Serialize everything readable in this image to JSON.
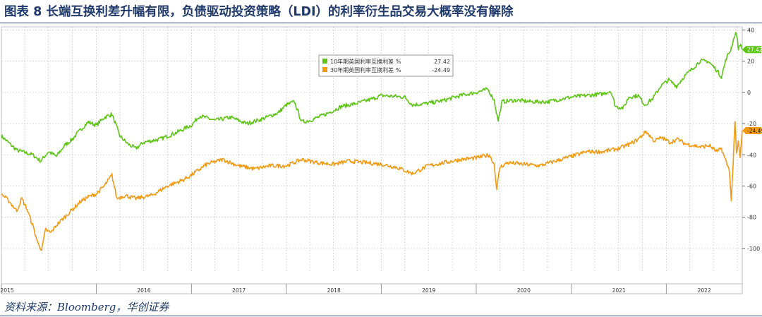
{
  "title": "图表 8  长端互换利差升幅有限，负债驱动投资策略（LDI）的利率衍生品交易大概率没有解除",
  "source": "资料来源：Bloomberg，华创证券",
  "chart_data": {
    "type": "line",
    "ylim": [
      -110,
      42
    ],
    "y_ticks": [
      40,
      20,
      0,
      -20,
      -40,
      -60,
      -80,
      -100
    ],
    "x_range": [
      "2015-01-01",
      "2022-10-20"
    ],
    "x_ticks": [
      "2015",
      "2016",
      "2017",
      "2018",
      "2019",
      "2020",
      "2021",
      "2022"
    ],
    "grid": true,
    "legend_position": "top-center",
    "series": [
      {
        "name": "10年期英国利率互换利差 %",
        "last_value": "27.42",
        "color": "#5ec416",
        "points": [
          [
            "2015-01-01",
            -28
          ],
          [
            "2015-03-01",
            -37
          ],
          [
            "2015-05-01",
            -40
          ],
          [
            "2015-06-01",
            -44
          ],
          [
            "2015-07-01",
            -38
          ],
          [
            "2015-08-01",
            -41
          ],
          [
            "2015-09-01",
            -34
          ],
          [
            "2015-10-01",
            -30
          ],
          [
            "2015-11-01",
            -24
          ],
          [
            "2015-12-01",
            -19
          ],
          [
            "2016-01-01",
            -21
          ],
          [
            "2016-02-01",
            -16
          ],
          [
            "2016-03-01",
            -14
          ],
          [
            "2016-04-01",
            -28
          ],
          [
            "2016-05-01",
            -33
          ],
          [
            "2016-06-01",
            -36
          ],
          [
            "2016-07-01",
            -32
          ],
          [
            "2016-09-01",
            -30
          ],
          [
            "2016-11-01",
            -26
          ],
          [
            "2017-01-01",
            -21
          ],
          [
            "2017-02-01",
            -15
          ],
          [
            "2017-04-01",
            -18
          ],
          [
            "2017-06-01",
            -16
          ],
          [
            "2017-08-01",
            -20
          ],
          [
            "2017-10-01",
            -17
          ],
          [
            "2017-12-01",
            -13
          ],
          [
            "2018-01-01",
            -8
          ],
          [
            "2018-02-01",
            -6
          ],
          [
            "2018-03-01",
            -19
          ],
          [
            "2018-04-01",
            -18
          ],
          [
            "2018-06-01",
            -14
          ],
          [
            "2018-08-01",
            -9
          ],
          [
            "2018-10-01",
            -7
          ],
          [
            "2018-12-01",
            -4
          ],
          [
            "2019-01-01",
            -2
          ],
          [
            "2019-04-01",
            -3
          ],
          [
            "2019-05-01",
            -8
          ],
          [
            "2019-07-01",
            -7
          ],
          [
            "2019-09-01",
            -5
          ],
          [
            "2019-11-01",
            -2
          ],
          [
            "2020-01-01",
            0
          ],
          [
            "2020-02-15",
            2
          ],
          [
            "2020-03-10",
            -5
          ],
          [
            "2020-03-25",
            -18
          ],
          [
            "2020-04-10",
            -6
          ],
          [
            "2020-06-01",
            -5
          ],
          [
            "2020-08-01",
            -6
          ],
          [
            "2020-10-01",
            -6
          ],
          [
            "2020-12-01",
            -4
          ],
          [
            "2021-01-01",
            -3
          ],
          [
            "2021-03-01",
            -2
          ],
          [
            "2021-05-01",
            -1
          ],
          [
            "2021-06-01",
            1
          ],
          [
            "2021-06-20",
            -9
          ],
          [
            "2021-07-20",
            -10
          ],
          [
            "2021-08-10",
            -3
          ],
          [
            "2021-09-15",
            -2
          ],
          [
            "2021-10-10",
            -8
          ],
          [
            "2021-11-10",
            -4
          ],
          [
            "2021-12-10",
            4
          ],
          [
            "2022-01-10",
            8
          ],
          [
            "2022-02-10",
            4
          ],
          [
            "2022-03-10",
            10
          ],
          [
            "2022-04-10",
            15
          ],
          [
            "2022-05-10",
            20
          ],
          [
            "2022-06-10",
            20
          ],
          [
            "2022-07-10",
            15
          ],
          [
            "2022-08-01",
            10
          ],
          [
            "2022-08-20",
            22
          ],
          [
            "2022-09-05",
            27
          ],
          [
            "2022-09-20",
            36
          ],
          [
            "2022-09-28",
            38
          ],
          [
            "2022-10-05",
            28
          ],
          [
            "2022-10-12",
            31
          ],
          [
            "2022-10-20",
            27.42
          ]
        ]
      },
      {
        "name": "30年期英国利率互换利差 %",
        "last_value": "-24.49",
        "color": "#f29a13",
        "points": [
          [
            "2015-01-01",
            -65
          ],
          [
            "2015-02-01",
            -70
          ],
          [
            "2015-03-01",
            -76
          ],
          [
            "2015-03-20",
            -68
          ],
          [
            "2015-04-10",
            -75
          ],
          [
            "2015-05-01",
            -85
          ],
          [
            "2015-05-20",
            -96
          ],
          [
            "2015-06-05",
            -101
          ],
          [
            "2015-06-20",
            -88
          ],
          [
            "2015-07-10",
            -90
          ],
          [
            "2015-08-01",
            -85
          ],
          [
            "2015-09-01",
            -80
          ],
          [
            "2015-10-01",
            -75
          ],
          [
            "2015-11-01",
            -70
          ],
          [
            "2015-12-01",
            -67
          ],
          [
            "2016-01-01",
            -65
          ],
          [
            "2016-02-01",
            -60
          ],
          [
            "2016-03-01",
            -53
          ],
          [
            "2016-03-20",
            -68
          ],
          [
            "2016-04-20",
            -66
          ],
          [
            "2016-06-01",
            -68
          ],
          [
            "2016-08-01",
            -66
          ],
          [
            "2016-10-01",
            -60
          ],
          [
            "2016-12-01",
            -56
          ],
          [
            "2017-01-01",
            -53
          ],
          [
            "2017-03-01",
            -46
          ],
          [
            "2017-05-01",
            -43
          ],
          [
            "2017-07-01",
            -47
          ],
          [
            "2017-09-01",
            -49
          ],
          [
            "2017-11-01",
            -47
          ],
          [
            "2018-01-01",
            -47
          ],
          [
            "2018-03-01",
            -43
          ],
          [
            "2018-05-01",
            -45
          ],
          [
            "2018-07-01",
            -46
          ],
          [
            "2018-09-01",
            -44
          ],
          [
            "2018-11-01",
            -45
          ],
          [
            "2019-01-01",
            -46
          ],
          [
            "2019-03-01",
            -48
          ],
          [
            "2019-05-01",
            -52
          ],
          [
            "2019-07-01",
            -47
          ],
          [
            "2019-09-01",
            -45
          ],
          [
            "2019-11-01",
            -43
          ],
          [
            "2020-01-01",
            -42
          ],
          [
            "2020-02-20",
            -40
          ],
          [
            "2020-03-10",
            -46
          ],
          [
            "2020-03-20",
            -62
          ],
          [
            "2020-04-01",
            -48
          ],
          [
            "2020-05-01",
            -45
          ],
          [
            "2020-07-01",
            -46
          ],
          [
            "2020-09-01",
            -47
          ],
          [
            "2020-11-01",
            -44
          ],
          [
            "2021-01-01",
            -41
          ],
          [
            "2021-03-01",
            -38
          ],
          [
            "2021-05-01",
            -38
          ],
          [
            "2021-07-01",
            -36
          ],
          [
            "2021-08-15",
            -33
          ],
          [
            "2021-09-15",
            -30
          ],
          [
            "2021-10-15",
            -25
          ],
          [
            "2021-11-15",
            -31
          ],
          [
            "2021-12-15",
            -29
          ],
          [
            "2022-01-15",
            -32
          ],
          [
            "2022-02-15",
            -30
          ],
          [
            "2022-03-15",
            -33
          ],
          [
            "2022-04-15",
            -34
          ],
          [
            "2022-05-15",
            -35
          ],
          [
            "2022-06-15",
            -34
          ],
          [
            "2022-07-15",
            -38
          ],
          [
            "2022-08-01",
            -36
          ],
          [
            "2022-08-20",
            -45
          ],
          [
            "2022-09-01",
            -50
          ],
          [
            "2022-09-08",
            -70
          ],
          [
            "2022-09-15",
            -45
          ],
          [
            "2022-09-22",
            -18
          ],
          [
            "2022-09-28",
            -40
          ],
          [
            "2022-10-05",
            -32
          ],
          [
            "2022-10-12",
            -42
          ],
          [
            "2022-10-20",
            -24.49
          ]
        ]
      }
    ]
  }
}
